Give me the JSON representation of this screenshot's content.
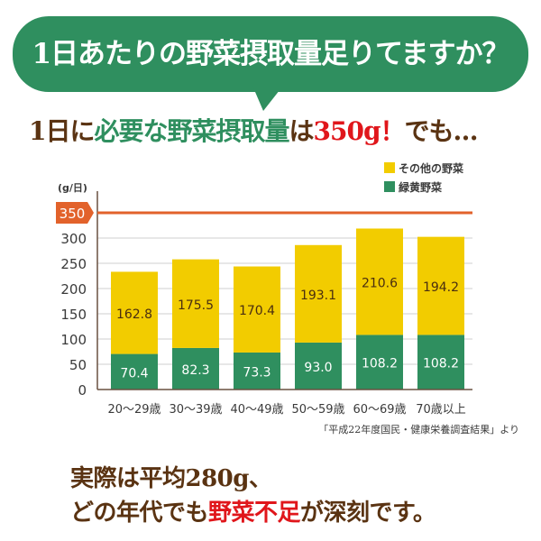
{
  "header": {
    "title": "1日あたりの野菜摂取量足りてますか？"
  },
  "subtitle": {
    "part1": "1日に",
    "part2": "必要な野菜摂取量",
    "part3": "は",
    "part4": "350g！",
    "part5": "でも…"
  },
  "footer": {
    "line1": "実際は平均280g、",
    "line2_a": "どの年代でも",
    "line2_b": "野菜不足",
    "line2_c": "が深刻です。"
  },
  "colors": {
    "green": "#2f8f5f",
    "yellow": "#f2cc00",
    "target": "#e2622b",
    "brown": "#5a3312"
  },
  "chart_data": {
    "type": "bar",
    "stacked": true,
    "ylabel": "(g/日)",
    "ylim": [
      0,
      350
    ],
    "yticks": [
      0,
      50,
      100,
      150,
      200,
      250,
      300
    ],
    "target_line": {
      "value": 350,
      "label": "350"
    },
    "categories": [
      "20〜29歳",
      "30〜39歳",
      "40〜49歳",
      "50〜59歳",
      "60〜69歳",
      "70歳以上"
    ],
    "series": [
      {
        "name": "緑黄野菜",
        "values": [
          70.4,
          82.3,
          73.3,
          93.0,
          108.2,
          108.2
        ]
      },
      {
        "name": "その他の野菜",
        "values": [
          162.8,
          175.5,
          170.4,
          193.1,
          210.6,
          194.2
        ]
      }
    ],
    "legend_position": "top-right",
    "source": "「平成22年度国民・健康栄養調査結果」より",
    "grid": true
  }
}
